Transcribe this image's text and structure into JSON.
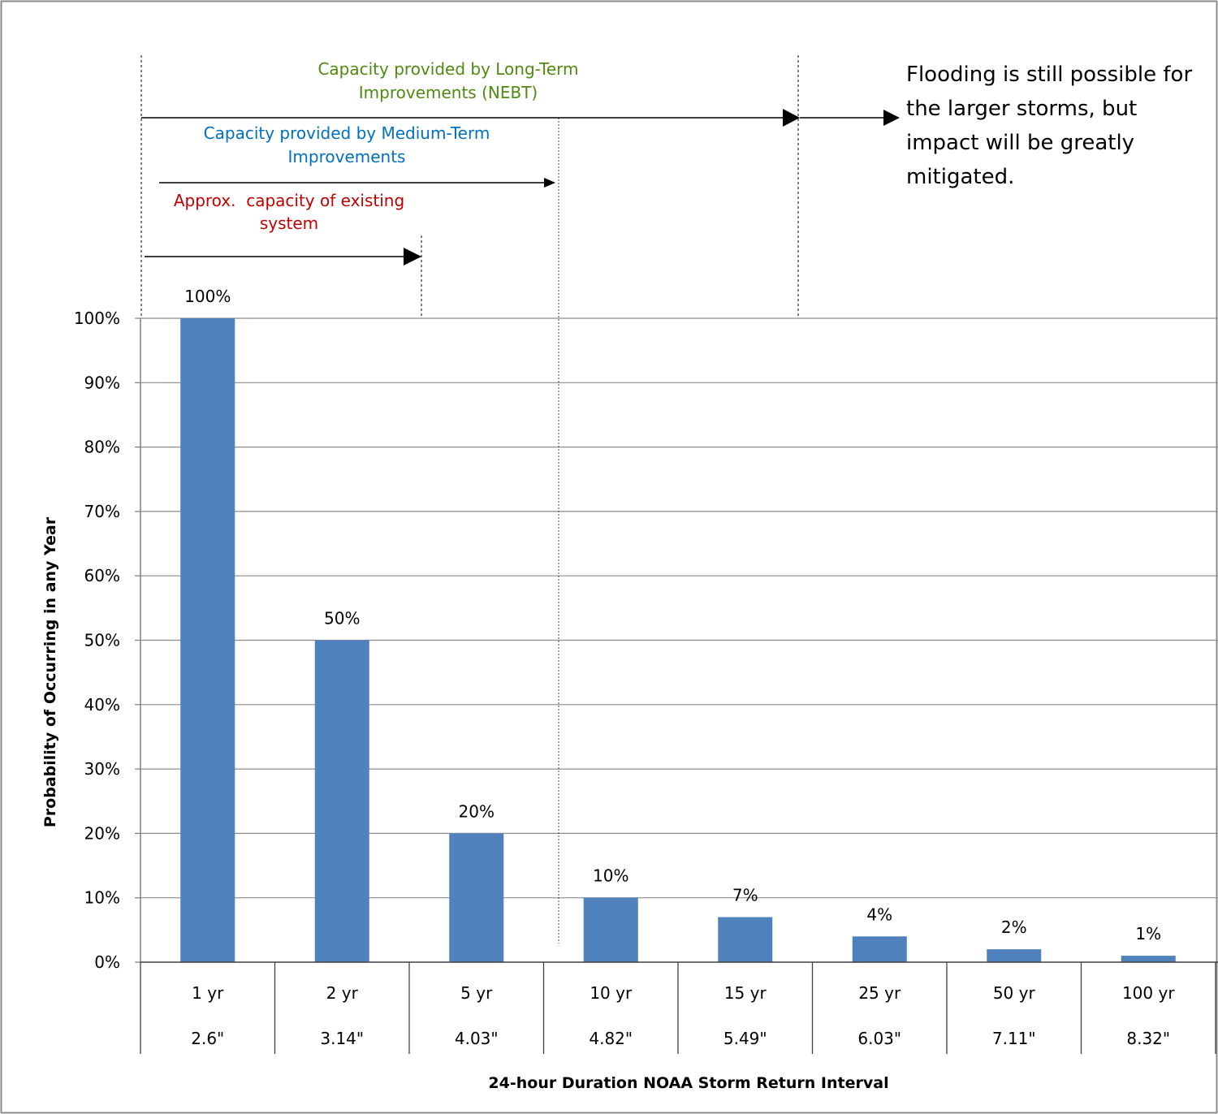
{
  "chart_data": {
    "type": "bar",
    "categories": [
      "1 yr",
      "2 yr",
      "5 yr",
      "10 yr",
      "15 yr",
      "25 yr",
      "50 yr",
      "100 yr"
    ],
    "rainfall": [
      "2.6\"",
      "3.14\"",
      "4.03\"",
      "4.82\"",
      "5.49\"",
      "6.03\"",
      "7.11\"",
      "8.32\""
    ],
    "values": [
      100,
      50,
      20,
      10,
      7,
      4,
      2,
      1
    ],
    "data_labels": [
      "100%",
      "50%",
      "20%",
      "10%",
      "7%",
      "4%",
      "2%",
      "1%"
    ],
    "title": "",
    "xlabel": "24-hour Duration NOAA Storm Return Interval",
    "ylabel": "Probability of Occurring in any Year",
    "ylim": [
      0,
      100
    ],
    "yticks": [
      "0%",
      "10%",
      "20%",
      "30%",
      "40%",
      "50%",
      "60%",
      "70%",
      "80%",
      "90%",
      "100%"
    ],
    "grid": true,
    "bar_color": "#4f81bd",
    "annotations": {
      "long_term": {
        "line1": "Capacity provided by Long-Term",
        "line2": "Improvements (NEBT)",
        "color": "#4f8a10"
      },
      "medium_term": {
        "line1": "Capacity provided by Medium-Term",
        "line2": "Improvements",
        "color": "#0070c0"
      },
      "existing": {
        "line1": "Approx.  capacity of existing",
        "line2": "system",
        "color": "#c00000"
      },
      "flooding_note": [
        "Flooding is still possible for",
        "the larger storms, but",
        "impact will be greatly",
        "mitigated."
      ]
    }
  }
}
